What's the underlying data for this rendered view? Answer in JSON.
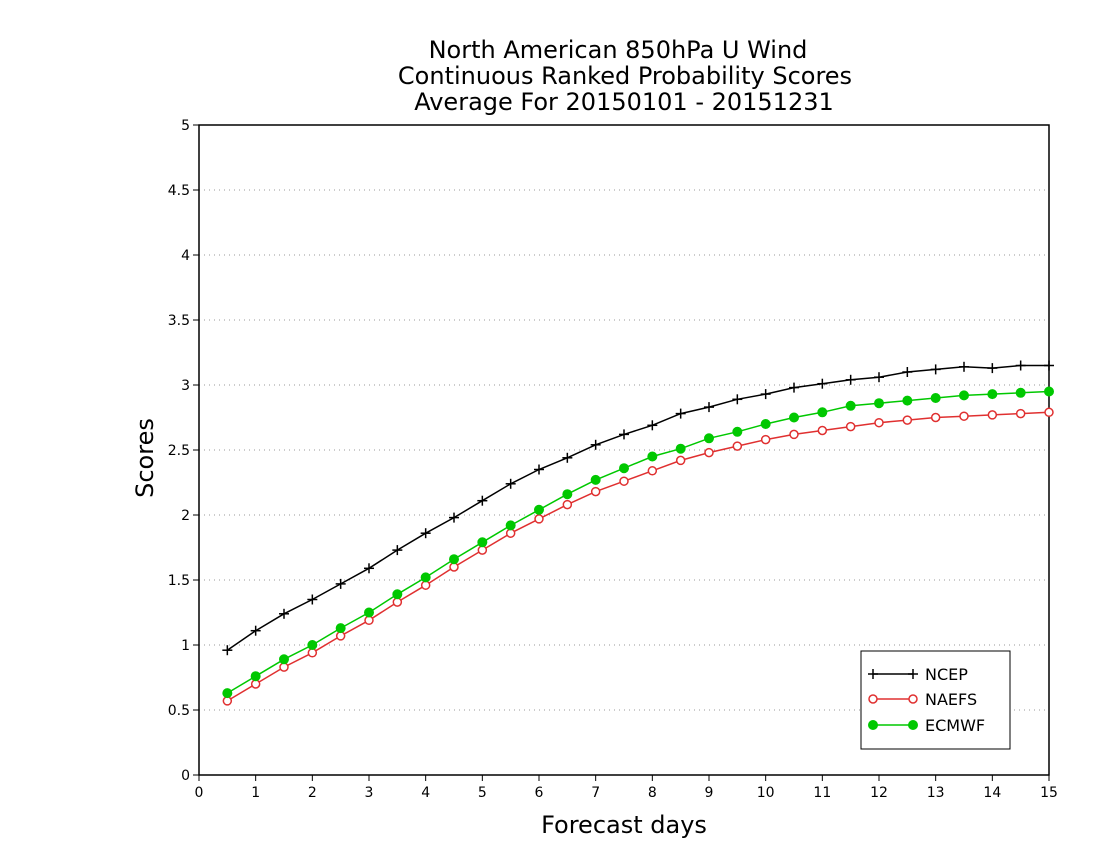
{
  "chart_data": {
    "type": "line",
    "title": [
      "North American 850hPa U Wind",
      "Continuous Ranked Probability Scores",
      "Average For 20150101 - 20151231"
    ],
    "xlabel": "Forecast days",
    "ylabel": "Scores",
    "xlim": [
      0,
      15
    ],
    "ylim": [
      0,
      5
    ],
    "xticks": [
      0,
      1,
      2,
      3,
      4,
      5,
      6,
      7,
      8,
      9,
      10,
      11,
      12,
      13,
      14,
      15
    ],
    "yticks": [
      0,
      0.5,
      1,
      1.5,
      2,
      2.5,
      3,
      3.5,
      4,
      4.5,
      5
    ],
    "grid": true,
    "legend_position": "bottom-right",
    "x": [
      0.5,
      1,
      1.5,
      2,
      2.5,
      3,
      3.5,
      4,
      4.5,
      5,
      5.5,
      6,
      6.5,
      7,
      7.5,
      8,
      8.5,
      9,
      9.5,
      10,
      10.5,
      11,
      11.5,
      12,
      12.5,
      13,
      13.5,
      14,
      14.5,
      15
    ],
    "series": [
      {
        "name": "NCEP",
        "color": "#000000",
        "marker": "plus",
        "values": [
          0.96,
          1.11,
          1.24,
          1.35,
          1.47,
          1.59,
          1.73,
          1.86,
          1.98,
          2.11,
          2.24,
          2.35,
          2.44,
          2.54,
          2.62,
          2.69,
          2.78,
          2.83,
          2.89,
          2.93,
          2.98,
          3.01,
          3.04,
          3.06,
          3.1,
          3.12,
          3.14,
          3.13,
          3.15,
          3.15
        ]
      },
      {
        "name": "NAEFS",
        "color": "#e03030",
        "marker": "open-circle",
        "values": [
          0.57,
          0.7,
          0.83,
          0.94,
          1.07,
          1.19,
          1.33,
          1.46,
          1.6,
          1.73,
          1.86,
          1.97,
          2.08,
          2.18,
          2.26,
          2.34,
          2.42,
          2.48,
          2.53,
          2.58,
          2.62,
          2.65,
          2.68,
          2.71,
          2.73,
          2.75,
          2.76,
          2.77,
          2.78,
          2.79
        ]
      },
      {
        "name": "ECMWF",
        "color": "#00c800",
        "marker": "filled-circle",
        "values": [
          0.63,
          0.76,
          0.89,
          1.0,
          1.13,
          1.25,
          1.39,
          1.52,
          1.66,
          1.79,
          1.92,
          2.04,
          2.16,
          2.27,
          2.36,
          2.45,
          2.51,
          2.59,
          2.64,
          2.7,
          2.75,
          2.79,
          2.84,
          2.86,
          2.88,
          2.9,
          2.92,
          2.93,
          2.94,
          2.95
        ]
      }
    ]
  }
}
